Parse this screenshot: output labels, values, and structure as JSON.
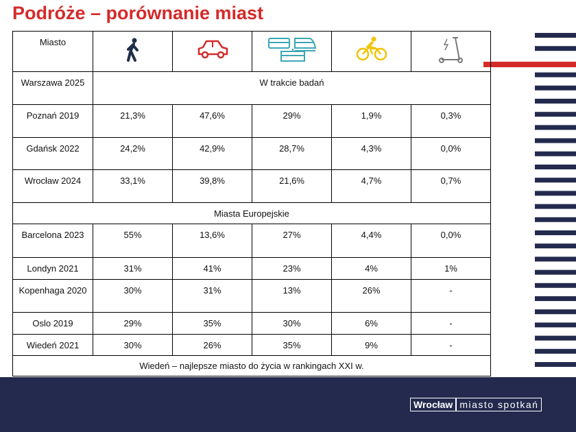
{
  "title": "Podróże – porównanie miast",
  "table": {
    "header": "Miasto",
    "rows": [
      {
        "city": "Warszawa 2025",
        "note": "W trakcie badań"
      },
      {
        "city": "Poznań 2019",
        "cells": [
          "21,3%",
          "47,6%",
          "29%",
          "1,9%",
          "0,3%"
        ]
      },
      {
        "city": "Gdańsk 2022",
        "cells": [
          "24,2%",
          "42,9%",
          "28,7%",
          "4,3%",
          "0,0%"
        ]
      },
      {
        "city": "Wrocław 2024",
        "cells": [
          "33,1%",
          "39,8%",
          "21,6%",
          "4,7%",
          "0,7%"
        ]
      },
      {
        "section": "Miasta Europejskie"
      },
      {
        "city": "Barcelona 2023",
        "cells": [
          "55%",
          "13,6%",
          "27%",
          "4,4%",
          "0,0%"
        ]
      },
      {
        "city": "Londyn 2021",
        "cells": [
          "31%",
          "41%",
          "23%",
          "4%",
          "1%"
        ]
      },
      {
        "city": "Kopenhaga 2020",
        "cells": [
          "30%",
          "31%",
          "13%",
          "26%",
          "-"
        ]
      },
      {
        "city": "Oslo 2019",
        "cells": [
          "29%",
          "35%",
          "30%",
          "6%",
          "-"
        ]
      },
      {
        "city": "Wiedeń 2021",
        "cells": [
          "30%",
          "26%",
          "35%",
          "9%",
          "-"
        ]
      }
    ],
    "footer": "Wiedeń – najlepsze miasto do życia w rankingach  XXI w."
  },
  "logo": {
    "brand": "Wrocław",
    "slogan": "miasto spotkań"
  }
}
